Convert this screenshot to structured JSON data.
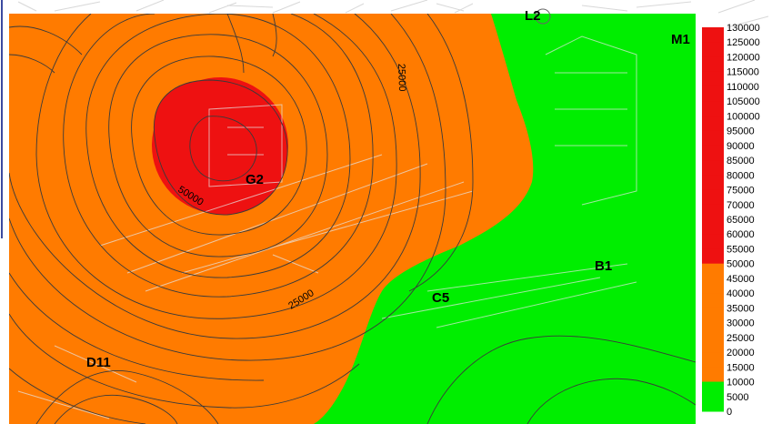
{
  "colors": {
    "high": "#ee1111",
    "medium": "#ff7b00",
    "low": "#00ee00",
    "contour": "#3a3a3a",
    "site_lines": "#cfcfcf",
    "frame": "#3b4aa0"
  },
  "wells": [
    {
      "id": "L2",
      "label": "L2"
    },
    {
      "id": "M1",
      "label": "M1"
    },
    {
      "id": "G2",
      "label": "G2"
    },
    {
      "id": "B1",
      "label": "B1"
    },
    {
      "id": "C5",
      "label": "C5"
    },
    {
      "id": "D11",
      "label": "D11"
    }
  ],
  "contour_labels": [
    {
      "id": "upper-25000",
      "text": "25000"
    },
    {
      "id": "lower-25000",
      "text": "25000"
    },
    {
      "id": "inner-50000",
      "text": "50000"
    }
  ],
  "legend": {
    "levels": [
      "130000",
      "125000",
      "120000",
      "115000",
      "110000",
      "105000",
      "100000",
      "95000",
      "90000",
      "85000",
      "80000",
      "75000",
      "70000",
      "65000",
      "60000",
      "55000",
      "50000",
      "45000",
      "40000",
      "35000",
      "30000",
      "25000",
      "20000",
      "15000",
      "10000",
      "5000",
      "0"
    ],
    "band_colors": [
      {
        "from": "50000",
        "to": "130000",
        "color": "high"
      },
      {
        "from": "10000",
        "to": "50000",
        "color": "medium"
      },
      {
        "from": "0",
        "to": "10000",
        "color": "low"
      }
    ]
  }
}
